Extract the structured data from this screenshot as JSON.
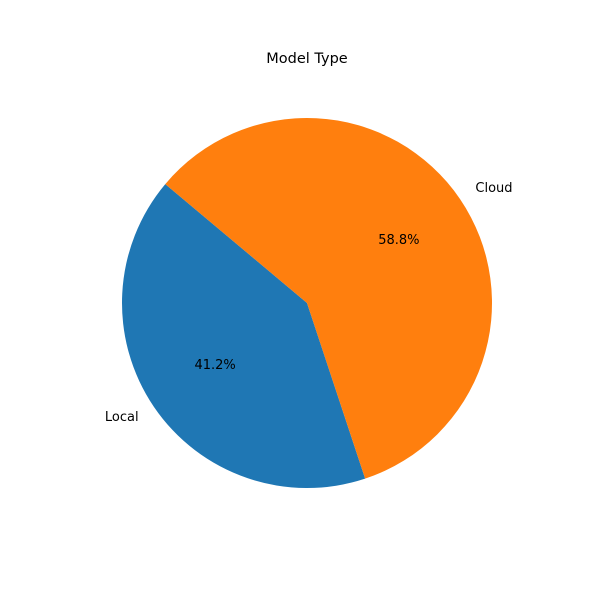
{
  "chart_data": {
    "type": "pie",
    "title": "Model Type",
    "slices": [
      {
        "label": "Local",
        "value": 41.2,
        "pct_label": "41.2%",
        "color": "#1f77b4"
      },
      {
        "label": "Cloud",
        "value": 58.8,
        "pct_label": "58.8%",
        "color": "#ff7f0e"
      }
    ],
    "start_angle_deg": 140,
    "direction": "counterclockwise"
  }
}
